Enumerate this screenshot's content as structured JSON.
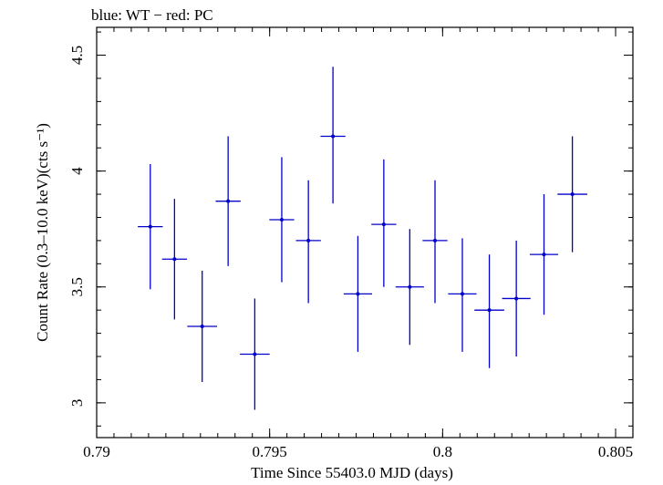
{
  "chart_data": {
    "type": "scatter",
    "title": "blue: WT − red: PC",
    "xlabel": "Time Since 55403.0 MJD (days)",
    "ylabel": "Count Rate (0.3–10.0 keV)(cts s⁻¹)",
    "xlim": [
      0.79,
      0.8055
    ],
    "ylim": [
      2.85,
      4.62
    ],
    "x_ticks": [
      {
        "value": 0.79,
        "label": "0.79"
      },
      {
        "value": 0.795,
        "label": "0.795"
      },
      {
        "value": 0.8,
        "label": "0.8"
      },
      {
        "value": 0.805,
        "label": "0.805"
      }
    ],
    "y_ticks": [
      {
        "value": 3.0,
        "label": "3"
      },
      {
        "value": 3.5,
        "label": "3.5"
      },
      {
        "value": 4.0,
        "label": "4"
      },
      {
        "value": 4.5,
        "label": "4.5"
      }
    ],
    "grid": false,
    "series": [
      {
        "color": "#0000cc",
        "points": [
          {
            "x": 0.79155,
            "y": 3.76,
            "xerr": 0.00036,
            "ylo": 3.49,
            "yhi": 4.03
          },
          {
            "x": 0.79225,
            "y": 3.62,
            "xerr": 0.00036,
            "ylo": 3.36,
            "yhi": 3.88
          },
          {
            "x": 0.79305,
            "y": 3.33,
            "xerr": 0.00043,
            "ylo": 3.09,
            "yhi": 3.57
          },
          {
            "x": 0.7938,
            "y": 3.87,
            "xerr": 0.00036,
            "ylo": 3.59,
            "yhi": 4.15
          },
          {
            "x": 0.79457,
            "y": 3.21,
            "xerr": 0.00043,
            "ylo": 2.97,
            "yhi": 3.45
          },
          {
            "x": 0.79535,
            "y": 3.79,
            "xerr": 0.00036,
            "ylo": 3.52,
            "yhi": 4.06
          },
          {
            "x": 0.79612,
            "y": 3.7,
            "xerr": 0.00036,
            "ylo": 3.43,
            "yhi": 3.96
          },
          {
            "x": 0.79683,
            "y": 4.15,
            "xerr": 0.00036,
            "ylo": 3.86,
            "yhi": 4.45
          },
          {
            "x": 0.79755,
            "y": 3.47,
            "xerr": 0.00041,
            "ylo": 3.22,
            "yhi": 3.72
          },
          {
            "x": 0.7983,
            "y": 3.77,
            "xerr": 0.00036,
            "ylo": 3.5,
            "yhi": 4.05
          },
          {
            "x": 0.79905,
            "y": 3.5,
            "xerr": 0.00041,
            "ylo": 3.25,
            "yhi": 3.75
          },
          {
            "x": 0.79978,
            "y": 3.7,
            "xerr": 0.00036,
            "ylo": 3.43,
            "yhi": 3.96
          },
          {
            "x": 0.80057,
            "y": 3.47,
            "xerr": 0.00041,
            "ylo": 3.22,
            "yhi": 3.71
          },
          {
            "x": 0.80135,
            "y": 3.4,
            "xerr": 0.00043,
            "ylo": 3.15,
            "yhi": 3.64
          },
          {
            "x": 0.80213,
            "y": 3.45,
            "xerr": 0.00041,
            "ylo": 3.2,
            "yhi": 3.7
          },
          {
            "x": 0.80293,
            "y": 3.64,
            "xerr": 0.00041,
            "ylo": 3.38,
            "yhi": 3.9
          },
          {
            "x": 0.80375,
            "y": 3.9,
            "xerr": 0.00043,
            "ylo": 3.65,
            "yhi": 4.15
          }
        ]
      }
    ]
  }
}
